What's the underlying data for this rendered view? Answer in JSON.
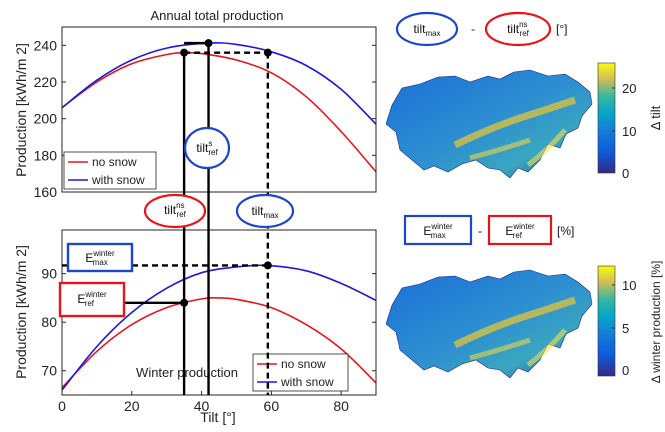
{
  "colors": {
    "no_snow": "#e8141c",
    "with_snow": "#1a1ad6",
    "guide": "#000000",
    "box_blue": "#1f46c8",
    "box_red": "#e8141c"
  },
  "chart_data": [
    {
      "type": "line",
      "title": "Annual total production",
      "ylabel": "Production [kWh/m 2]",
      "xlim": [
        0,
        90
      ],
      "ylim": [
        160,
        250
      ],
      "yticks": [
        160,
        180,
        200,
        220,
        240
      ],
      "grid": false,
      "legend_position": "bottom-left",
      "series": [
        {
          "name": "no snow",
          "color": "#e8141c",
          "x": [
            0,
            10,
            20,
            30,
            35,
            40,
            50,
            60,
            70,
            80,
            90
          ],
          "y": [
            206,
            220,
            230,
            235,
            236,
            235.5,
            232,
            225,
            212,
            193,
            171
          ]
        },
        {
          "name": "with snow",
          "color": "#1a1ad6",
          "x": [
            0,
            10,
            20,
            30,
            42,
            50,
            60,
            70,
            80,
            90
          ],
          "y": [
            206,
            221,
            232,
            238.5,
            241.2,
            240.5,
            236.5,
            229,
            216,
            197
          ]
        }
      ],
      "guides": [
        {
          "x": 35,
          "y": 236,
          "style": "solid"
        },
        {
          "x": 42,
          "y": 241.2,
          "style": "solid"
        },
        {
          "x": 59,
          "y": 236,
          "style": "dashed"
        }
      ]
    },
    {
      "type": "line",
      "title": "Winter production",
      "xlabel": "Tilt [°]",
      "ylabel": "Production [kWh/m 2]",
      "xlim": [
        0,
        90
      ],
      "ylim": [
        65,
        99
      ],
      "xticks": [
        0,
        20,
        40,
        60,
        80
      ],
      "yticks": [
        70,
        80,
        90
      ],
      "grid": false,
      "legend_position": "bottom-right",
      "series": [
        {
          "name": "no snow",
          "color": "#e8141c",
          "x": [
            0,
            10,
            20,
            30,
            40,
            45,
            50,
            60,
            70,
            80,
            90
          ],
          "y": [
            66.5,
            74,
            79.5,
            83,
            84.8,
            85,
            84.7,
            83,
            79.5,
            74.5,
            67.5
          ]
        },
        {
          "name": "with snow",
          "color": "#1a1ad6",
          "x": [
            0,
            10,
            20,
            30,
            40,
            50,
            59,
            70,
            80,
            90
          ],
          "y": [
            66,
            75,
            82,
            87,
            90.2,
            91.4,
            91.7,
            90.6,
            88,
            84.5
          ]
        }
      ],
      "guides": [
        {
          "x": 35,
          "y": 84,
          "style": "solid"
        },
        {
          "x": 59,
          "y": 91.7,
          "style": "dashed"
        }
      ]
    }
  ],
  "annotations": {
    "tilt_s_ref": {
      "base": "tilt",
      "sup": "s",
      "sub": "ref"
    },
    "tilt_ns_ref": {
      "base": "tilt",
      "sup": "ns",
      "sub": "ref"
    },
    "tilt_max": {
      "base": "tilt",
      "sub": "max"
    },
    "e_winter_max": {
      "base": "E",
      "sup": "winter",
      "sub": "max"
    },
    "e_winter_ref": {
      "base": "E",
      "sup": "winter",
      "sub": "ref"
    }
  },
  "maps": {
    "top": {
      "formula_left": {
        "base": "tilt",
        "sub": "max"
      },
      "formula_minus": "-",
      "formula_right": {
        "base": "tilt",
        "sup": "ns",
        "sub": "ref"
      },
      "unit": "[°]",
      "colorbar_label": "Δ tilt",
      "colorbar_ticks": [
        "20",
        "10",
        "0"
      ]
    },
    "bottom": {
      "formula_left": {
        "base": "E",
        "sup": "winter",
        "sub": "max"
      },
      "formula_minus": "-",
      "formula_right": {
        "base": "E",
        "sup": "winter",
        "sub": "ref"
      },
      "unit": "[%]",
      "colorbar_label": "Δ winter production [%]",
      "colorbar_ticks": [
        "10",
        "5",
        "0"
      ]
    }
  }
}
